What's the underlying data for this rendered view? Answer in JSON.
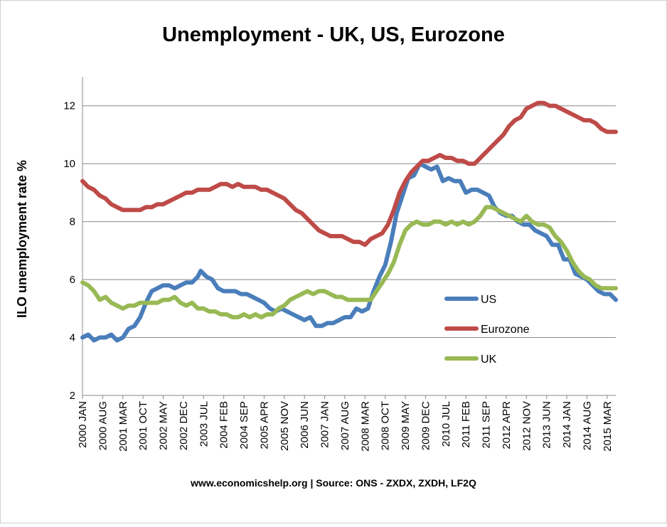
{
  "chart_data": {
    "type": "line",
    "title": "Unemployment - UK, US, Eurozone",
    "xlabel": "",
    "ylabel": "ILO unemployment rate %",
    "footer": "www.economicshelp.org | Source: ONS - ZXDX, ZXDH, LF2Q",
    "ylim": [
      2,
      13
    ],
    "yticks": [
      2,
      4,
      6,
      8,
      10,
      12
    ],
    "xlim": [
      "2000 JAN",
      "2015 JUN"
    ],
    "x_tick_labels": [
      "2000 JAN",
      "2000 AUG",
      "2001 MAR",
      "2001 OCT",
      "2002 MAY",
      "2002 DEC",
      "2003 JUL",
      "2004 FEB",
      "2004 SEP",
      "2005 APR",
      "2005 NOV",
      "2006 JUN",
      "2007 JAN",
      "2007 AUG",
      "2008 MAR",
      "2008 OCT",
      "2009 MAY",
      "2009 DEC",
      "2010 JUL",
      "2011 FEB",
      "2011 SEP",
      "2012 APR",
      "2012 NOV",
      "2013 JUN",
      "2014 JAN",
      "2014 AUG",
      "2015 MAR"
    ],
    "grid": "horizontal",
    "legend_position": "right",
    "series": [
      {
        "name": "US",
        "color": "#4a7ebb",
        "points": [
          [
            "2000 JAN",
            4.0
          ],
          [
            "2000 MAR",
            4.1
          ],
          [
            "2000 MAY",
            3.9
          ],
          [
            "2000 JUL",
            4.0
          ],
          [
            "2000 SEP",
            4.0
          ],
          [
            "2000 NOV",
            4.1
          ],
          [
            "2001 JAN",
            3.9
          ],
          [
            "2001 MAR",
            4.0
          ],
          [
            "2001 MAY",
            4.3
          ],
          [
            "2001 JUL",
            4.4
          ],
          [
            "2001 SEP",
            4.7
          ],
          [
            "2001 NOV",
            5.2
          ],
          [
            "2002 JAN",
            5.6
          ],
          [
            "2002 MAR",
            5.7
          ],
          [
            "2002 MAY",
            5.8
          ],
          [
            "2002 JUL",
            5.8
          ],
          [
            "2002 SEP",
            5.7
          ],
          [
            "2002 NOV",
            5.8
          ],
          [
            "2003 JAN",
            5.9
          ],
          [
            "2003 MAR",
            5.9
          ],
          [
            "2003 MAY",
            6.1
          ],
          [
            "2003 JUN",
            6.3
          ],
          [
            "2003 AUG",
            6.1
          ],
          [
            "2003 OCT",
            6.0
          ],
          [
            "2003 DEC",
            5.7
          ],
          [
            "2004 FEB",
            5.6
          ],
          [
            "2004 APR",
            5.6
          ],
          [
            "2004 JUN",
            5.6
          ],
          [
            "2004 AUG",
            5.5
          ],
          [
            "2004 OCT",
            5.5
          ],
          [
            "2004 DEC",
            5.4
          ],
          [
            "2005 FEB",
            5.3
          ],
          [
            "2005 APR",
            5.2
          ],
          [
            "2005 JUN",
            5.0
          ],
          [
            "2005 AUG",
            4.9
          ],
          [
            "2005 OCT",
            5.0
          ],
          [
            "2005 DEC",
            4.9
          ],
          [
            "2006 FEB",
            4.8
          ],
          [
            "2006 APR",
            4.7
          ],
          [
            "2006 JUN",
            4.6
          ],
          [
            "2006 AUG",
            4.7
          ],
          [
            "2006 OCT",
            4.4
          ],
          [
            "2006 DEC",
            4.4
          ],
          [
            "2007 FEB",
            4.5
          ],
          [
            "2007 APR",
            4.5
          ],
          [
            "2007 JUN",
            4.6
          ],
          [
            "2007 AUG",
            4.7
          ],
          [
            "2007 OCT",
            4.7
          ],
          [
            "2007 DEC",
            5.0
          ],
          [
            "2008 FEB",
            4.9
          ],
          [
            "2008 APR",
            5.0
          ],
          [
            "2008 JUN",
            5.6
          ],
          [
            "2008 AUG",
            6.1
          ],
          [
            "2008 OCT",
            6.5
          ],
          [
            "2008 DEC",
            7.3
          ],
          [
            "2009 FEB",
            8.3
          ],
          [
            "2009 APR",
            8.9
          ],
          [
            "2009 JUN",
            9.5
          ],
          [
            "2009 AUG",
            9.6
          ],
          [
            "2009 OCT",
            10.0
          ],
          [
            "2009 DEC",
            9.9
          ],
          [
            "2010 FEB",
            9.8
          ],
          [
            "2010 APR",
            9.9
          ],
          [
            "2010 JUN",
            9.4
          ],
          [
            "2010 AUG",
            9.5
          ],
          [
            "2010 OCT",
            9.4
          ],
          [
            "2010 DEC",
            9.4
          ],
          [
            "2011 FEB",
            9.0
          ],
          [
            "2011 APR",
            9.1
          ],
          [
            "2011 JUN",
            9.1
          ],
          [
            "2011 AUG",
            9.0
          ],
          [
            "2011 OCT",
            8.9
          ],
          [
            "2011 DEC",
            8.5
          ],
          [
            "2012 FEB",
            8.3
          ],
          [
            "2012 APR",
            8.2
          ],
          [
            "2012 JUN",
            8.2
          ],
          [
            "2012 AUG",
            8.0
          ],
          [
            "2012 OCT",
            7.9
          ],
          [
            "2012 DEC",
            7.9
          ],
          [
            "2013 FEB",
            7.7
          ],
          [
            "2013 APR",
            7.6
          ],
          [
            "2013 JUN",
            7.5
          ],
          [
            "2013 AUG",
            7.2
          ],
          [
            "2013 OCT",
            7.2
          ],
          [
            "2013 DEC",
            6.7
          ],
          [
            "2014 FEB",
            6.7
          ],
          [
            "2014 APR",
            6.2
          ],
          [
            "2014 JUN",
            6.1
          ],
          [
            "2014 AUG",
            6.0
          ],
          [
            "2014 OCT",
            5.8
          ],
          [
            "2014 DEC",
            5.6
          ],
          [
            "2015 FEB",
            5.5
          ],
          [
            "2015 APR",
            5.5
          ],
          [
            "2015 JUN",
            5.3
          ]
        ]
      },
      {
        "name": "Eurozone",
        "color": "#be4b48",
        "points": [
          [
            "2000 JAN",
            9.4
          ],
          [
            "2000 MAR",
            9.2
          ],
          [
            "2000 MAY",
            9.1
          ],
          [
            "2000 JUL",
            8.9
          ],
          [
            "2000 SEP",
            8.8
          ],
          [
            "2000 NOV",
            8.6
          ],
          [
            "2001 JAN",
            8.5
          ],
          [
            "2001 MAR",
            8.4
          ],
          [
            "2001 MAY",
            8.4
          ],
          [
            "2001 JUL",
            8.4
          ],
          [
            "2001 SEP",
            8.4
          ],
          [
            "2001 NOV",
            8.5
          ],
          [
            "2002 JAN",
            8.5
          ],
          [
            "2002 MAR",
            8.6
          ],
          [
            "2002 MAY",
            8.6
          ],
          [
            "2002 JUL",
            8.7
          ],
          [
            "2002 SEP",
            8.8
          ],
          [
            "2002 NOV",
            8.9
          ],
          [
            "2003 JAN",
            9.0
          ],
          [
            "2003 MAR",
            9.0
          ],
          [
            "2003 MAY",
            9.1
          ],
          [
            "2003 JUL",
            9.1
          ],
          [
            "2003 SEP",
            9.1
          ],
          [
            "2003 NOV",
            9.2
          ],
          [
            "2004 JAN",
            9.3
          ],
          [
            "2004 MAR",
            9.3
          ],
          [
            "2004 MAY",
            9.2
          ],
          [
            "2004 JUL",
            9.3
          ],
          [
            "2004 SEP",
            9.2
          ],
          [
            "2004 NOV",
            9.2
          ],
          [
            "2005 JAN",
            9.2
          ],
          [
            "2005 MAR",
            9.1
          ],
          [
            "2005 MAY",
            9.1
          ],
          [
            "2005 JUL",
            9.0
          ],
          [
            "2005 SEP",
            8.9
          ],
          [
            "2005 NOV",
            8.8
          ],
          [
            "2006 JAN",
            8.6
          ],
          [
            "2006 MAR",
            8.4
          ],
          [
            "2006 MAY",
            8.3
          ],
          [
            "2006 JUL",
            8.1
          ],
          [
            "2006 SEP",
            7.9
          ],
          [
            "2006 NOV",
            7.7
          ],
          [
            "2007 JAN",
            7.6
          ],
          [
            "2007 MAR",
            7.5
          ],
          [
            "2007 MAY",
            7.5
          ],
          [
            "2007 JUL",
            7.5
          ],
          [
            "2007 SEP",
            7.4
          ],
          [
            "2007 NOV",
            7.3
          ],
          [
            "2008 JAN",
            7.3
          ],
          [
            "2008 MAR",
            7.2
          ],
          [
            "2008 MAY",
            7.4
          ],
          [
            "2008 JUL",
            7.5
          ],
          [
            "2008 SEP",
            7.6
          ],
          [
            "2008 NOV",
            7.9
          ],
          [
            "2009 JAN",
            8.4
          ],
          [
            "2009 MAR",
            9.0
          ],
          [
            "2009 MAY",
            9.4
          ],
          [
            "2009 JUL",
            9.7
          ],
          [
            "2009 SEP",
            9.9
          ],
          [
            "2009 NOV",
            10.1
          ],
          [
            "2010 JAN",
            10.1
          ],
          [
            "2010 MAR",
            10.2
          ],
          [
            "2010 MAY",
            10.3
          ],
          [
            "2010 JUL",
            10.2
          ],
          [
            "2010 SEP",
            10.2
          ],
          [
            "2010 NOV",
            10.1
          ],
          [
            "2011 JAN",
            10.1
          ],
          [
            "2011 MAR",
            10.0
          ],
          [
            "2011 MAY",
            10.0
          ],
          [
            "2011 JUL",
            10.2
          ],
          [
            "2011 SEP",
            10.4
          ],
          [
            "2011 NOV",
            10.6
          ],
          [
            "2012 JAN",
            10.8
          ],
          [
            "2012 MAR",
            11.0
          ],
          [
            "2012 MAY",
            11.3
          ],
          [
            "2012 JUL",
            11.5
          ],
          [
            "2012 SEP",
            11.6
          ],
          [
            "2012 NOV",
            11.9
          ],
          [
            "2013 JAN",
            12.0
          ],
          [
            "2013 MAR",
            12.1
          ],
          [
            "2013 MAY",
            12.1
          ],
          [
            "2013 JUL",
            12.0
          ],
          [
            "2013 SEP",
            12.0
          ],
          [
            "2013 NOV",
            11.9
          ],
          [
            "2014 JAN",
            11.8
          ],
          [
            "2014 MAR",
            11.7
          ],
          [
            "2014 MAY",
            11.6
          ],
          [
            "2014 JUL",
            11.5
          ],
          [
            "2014 SEP",
            11.5
          ],
          [
            "2014 NOV",
            11.4
          ],
          [
            "2015 JAN",
            11.2
          ],
          [
            "2015 MAR",
            11.1
          ],
          [
            "2015 JUN",
            11.1
          ]
        ]
      },
      {
        "name": "UK",
        "color": "#98b954",
        "points": [
          [
            "2000 JAN",
            5.9
          ],
          [
            "2000 MAR",
            5.8
          ],
          [
            "2000 MAY",
            5.6
          ],
          [
            "2000 JUL",
            5.3
          ],
          [
            "2000 SEP",
            5.4
          ],
          [
            "2000 NOV",
            5.2
          ],
          [
            "2001 JAN",
            5.1
          ],
          [
            "2001 MAR",
            5.0
          ],
          [
            "2001 MAY",
            5.1
          ],
          [
            "2001 JUL",
            5.1
          ],
          [
            "2001 SEP",
            5.2
          ],
          [
            "2001 NOV",
            5.2
          ],
          [
            "2002 JAN",
            5.2
          ],
          [
            "2002 MAR",
            5.2
          ],
          [
            "2002 MAY",
            5.3
          ],
          [
            "2002 JUL",
            5.3
          ],
          [
            "2002 SEP",
            5.4
          ],
          [
            "2002 NOV",
            5.2
          ],
          [
            "2003 JAN",
            5.1
          ],
          [
            "2003 MAR",
            5.2
          ],
          [
            "2003 MAY",
            5.0
          ],
          [
            "2003 JUL",
            5.0
          ],
          [
            "2003 SEP",
            4.9
          ],
          [
            "2003 NOV",
            4.9
          ],
          [
            "2004 JAN",
            4.8
          ],
          [
            "2004 MAR",
            4.8
          ],
          [
            "2004 MAY",
            4.7
          ],
          [
            "2004 JUL",
            4.7
          ],
          [
            "2004 SEP",
            4.8
          ],
          [
            "2004 NOV",
            4.7
          ],
          [
            "2005 JAN",
            4.8
          ],
          [
            "2005 MAR",
            4.7
          ],
          [
            "2005 MAY",
            4.8
          ],
          [
            "2005 JUL",
            4.8
          ],
          [
            "2005 SEP",
            5.0
          ],
          [
            "2005 NOV",
            5.1
          ],
          [
            "2006 JAN",
            5.3
          ],
          [
            "2006 MAR",
            5.4
          ],
          [
            "2006 MAY",
            5.5
          ],
          [
            "2006 JUL",
            5.6
          ],
          [
            "2006 SEP",
            5.5
          ],
          [
            "2006 NOV",
            5.6
          ],
          [
            "2007 JAN",
            5.6
          ],
          [
            "2007 MAR",
            5.5
          ],
          [
            "2007 MAY",
            5.4
          ],
          [
            "2007 JUL",
            5.4
          ],
          [
            "2007 SEP",
            5.3
          ],
          [
            "2007 NOV",
            5.3
          ],
          [
            "2008 JAN",
            5.3
          ],
          [
            "2008 MAR",
            5.3
          ],
          [
            "2008 MAY",
            5.3
          ],
          [
            "2008 JUL",
            5.6
          ],
          [
            "2008 SEP",
            5.9
          ],
          [
            "2008 NOV",
            6.2
          ],
          [
            "2009 JAN",
            6.6
          ],
          [
            "2009 MAR",
            7.2
          ],
          [
            "2009 MAY",
            7.7
          ],
          [
            "2009 JUL",
            7.9
          ],
          [
            "2009 SEP",
            8.0
          ],
          [
            "2009 NOV",
            7.9
          ],
          [
            "2010 JAN",
            7.9
          ],
          [
            "2010 MAR",
            8.0
          ],
          [
            "2010 MAY",
            8.0
          ],
          [
            "2010 JUL",
            7.9
          ],
          [
            "2010 SEP",
            8.0
          ],
          [
            "2010 NOV",
            7.9
          ],
          [
            "2011 JAN",
            8.0
          ],
          [
            "2011 MAR",
            7.9
          ],
          [
            "2011 MAY",
            8.0
          ],
          [
            "2011 JUL",
            8.2
          ],
          [
            "2011 SEP",
            8.5
          ],
          [
            "2011 NOV",
            8.5
          ],
          [
            "2012 JAN",
            8.4
          ],
          [
            "2012 MAR",
            8.3
          ],
          [
            "2012 MAY",
            8.2
          ],
          [
            "2012 JUL",
            8.1
          ],
          [
            "2012 SEP",
            8.0
          ],
          [
            "2012 NOV",
            8.2
          ],
          [
            "2013 JAN",
            8.0
          ],
          [
            "2013 MAR",
            7.9
          ],
          [
            "2013 MAY",
            7.9
          ],
          [
            "2013 JUL",
            7.8
          ],
          [
            "2013 SEP",
            7.5
          ],
          [
            "2013 NOV",
            7.3
          ],
          [
            "2014 JAN",
            7.0
          ],
          [
            "2014 MAR",
            6.6
          ],
          [
            "2014 MAY",
            6.3
          ],
          [
            "2014 JUL",
            6.1
          ],
          [
            "2014 SEP",
            6.0
          ],
          [
            "2014 NOV",
            5.8
          ],
          [
            "2015 JAN",
            5.7
          ],
          [
            "2015 MAR",
            5.7
          ],
          [
            "2015 JUN",
            5.7
          ]
        ]
      }
    ]
  }
}
